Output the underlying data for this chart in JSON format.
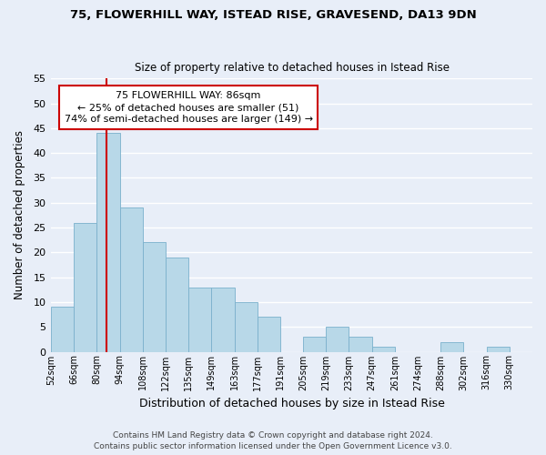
{
  "title1": "75, FLOWERHILL WAY, ISTEAD RISE, GRAVESEND, DA13 9DN",
  "title2": "Size of property relative to detached houses in Istead Rise",
  "xlabel": "Distribution of detached houses by size in Istead Rise",
  "ylabel": "Number of detached properties",
  "bin_labels": [
    "52sqm",
    "66sqm",
    "80sqm",
    "94sqm",
    "108sqm",
    "122sqm",
    "135sqm",
    "149sqm",
    "163sqm",
    "177sqm",
    "191sqm",
    "205sqm",
    "219sqm",
    "233sqm",
    "247sqm",
    "261sqm",
    "274sqm",
    "288sqm",
    "302sqm",
    "316sqm",
    "330sqm"
  ],
  "n_bins": 21,
  "counts": [
    9,
    26,
    44,
    29,
    22,
    19,
    13,
    13,
    10,
    7,
    0,
    3,
    5,
    3,
    1,
    0,
    0,
    2,
    0,
    1,
    0
  ],
  "bar_color": "#b8d8e8",
  "bar_edge_color": "#7ab0cc",
  "vline_bin": 2,
  "vline_color": "#cc0000",
  "annotation_line1": "75 FLOWERHILL WAY: 86sqm",
  "annotation_line2": "← 25% of detached houses are smaller (51)",
  "annotation_line3": "74% of semi-detached houses are larger (149) →",
  "annotation_box_color": "#ffffff",
  "annotation_box_edge": "#cc0000",
  "ylim": [
    0,
    55
  ],
  "yticks": [
    0,
    5,
    10,
    15,
    20,
    25,
    30,
    35,
    40,
    45,
    50,
    55
  ],
  "footer1": "Contains HM Land Registry data © Crown copyright and database right 2024.",
  "footer2": "Contains public sector information licensed under the Open Government Licence v3.0.",
  "bg_color": "#e8eef8"
}
